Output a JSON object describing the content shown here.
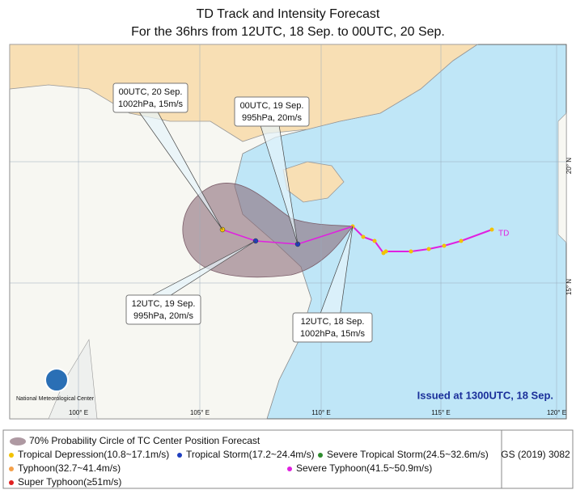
{
  "header": {
    "title": "TD Track and Intensity Forecast",
    "subtitle": "For the 36hrs from 12UTC, 18 Sep. to 00UTC, 20 Sep."
  },
  "callouts": [
    {
      "time": "00UTC, 20 Sep.",
      "info": "1002hPa, 15m/s"
    },
    {
      "time": "00UTC, 19 Sep.",
      "info": "995hPa, 20m/s"
    },
    {
      "time": "12UTC, 19 Sep.",
      "info": "995hPa, 20m/s"
    },
    {
      "time": "12UTC, 18 Sep.",
      "info": "1002hPa, 15m/s"
    }
  ],
  "track_label": "TD",
  "issued": "Issued at 1300UTC, 18 Sep.",
  "agency": "National Meteorological Center",
  "lon_labels": [
    "100° E",
    "105° E",
    "110° E",
    "115° E",
    "120° E"
  ],
  "lat_labels": [
    "20° N",
    "15° N"
  ],
  "legend": {
    "circle": "70% Probability Circle of TC Center Position Forecast",
    "items": [
      {
        "label": "Tropical Depression(10.8~17.1m/s)",
        "color": "#f2c200"
      },
      {
        "label": "Tropical Storm(17.2~24.4m/s)",
        "color": "#1f3fbf"
      },
      {
        "label": "Severe Tropical Storm(24.5~32.6m/s)",
        "color": "#2e8b2e"
      },
      {
        "label": "Typhoon(32.7~41.4m/s)",
        "color": "#f4a04a"
      },
      {
        "label": "Severe Typhoon(41.5~50.9m/s)",
        "color": "#e020e0"
      },
      {
        "label": "Super Typhoon(≥51m/s)",
        "color": "#e02020"
      }
    ]
  },
  "code": "GS (2019) 3082"
}
